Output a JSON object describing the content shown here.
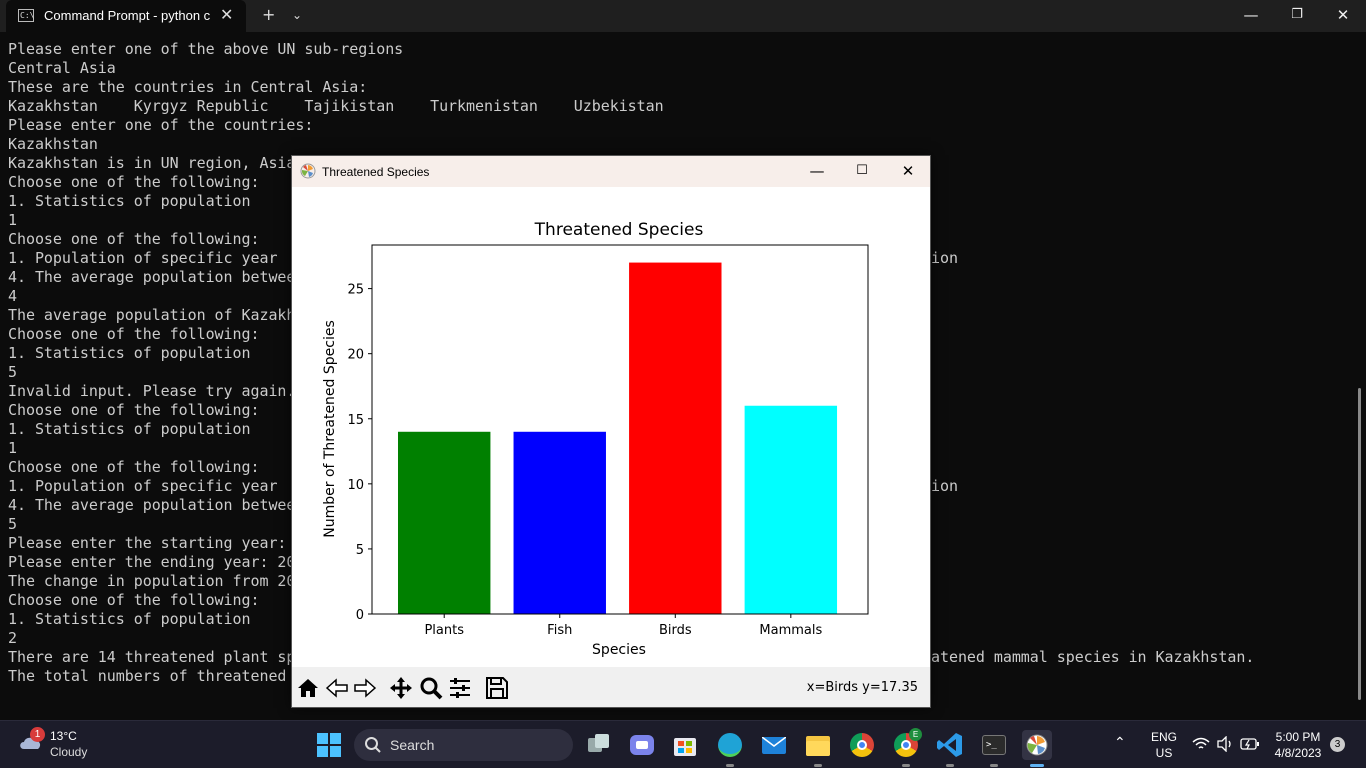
{
  "terminal": {
    "tab_title": "Command Prompt - python c",
    "tab_icon_glyph": "C:\\",
    "lines": [
      "Please enter one of the above UN sub-regions",
      "Central Asia",
      "These are the countries in Central Asia:",
      "Kazakhstan    Kyrgyz Republic    Tajikistan    Turkmenistan    Uzbekistan",
      "Please enter one of the countries:",
      "Kazakhstan",
      "Kazakhstan is in UN region, Asia",
      "Choose one of the following:",
      "1. Statistics of population",
      "1",
      "Choose one of the following:",
      "1. Population of specific year",
      "4. The average population betwee",
      "4",
      "The average population of Kazakh",
      "Choose one of the following:",
      "1. Statistics of population",
      "5",
      "Invalid input. Please try again.",
      "Choose one of the following:",
      "1. Statistics of population",
      "1",
      "Choose one of the following:",
      "1. Population of specific year",
      "4. The average population betwee",
      "5",
      "Please enter the starting year:",
      "Please enter the ending year: 20",
      "The change in population from 20",
      "Choose one of the following:",
      "1. Statistics of population",
      "2",
      "There are 14 threatened plant sp",
      "The total numbers of threatened"
    ],
    "right_fragments": {
      "line11": "ion",
      "line23": "ion",
      "line32": "atened mammal species in Kazakhstan."
    }
  },
  "figure_window": {
    "title": "Threatened Species",
    "coord_readout": "x=Birds y=17.35"
  },
  "chart_data": {
    "type": "bar",
    "title": "Threatened Species",
    "xlabel": "Species",
    "ylabel": "Number of Threatened Species",
    "categories": [
      "Plants",
      "Fish",
      "Birds",
      "Mammals"
    ],
    "values": [
      14,
      14,
      27,
      16
    ],
    "colors": [
      "#008000",
      "#0000ff",
      "#ff0000",
      "#00ffff"
    ],
    "yticks": [
      0,
      5,
      10,
      15,
      20,
      25
    ],
    "ylim": [
      0,
      28.35
    ],
    "grid": false,
    "legend": "none"
  },
  "taskbar": {
    "weather_badge": "1",
    "temperature": "13°C",
    "condition": "Cloudy",
    "search_label": "Search",
    "language": "ENG",
    "region": "US",
    "time": "5:00 PM",
    "date": "4/8/2023",
    "notifications": "3",
    "chrome_profile_badge": "E"
  }
}
